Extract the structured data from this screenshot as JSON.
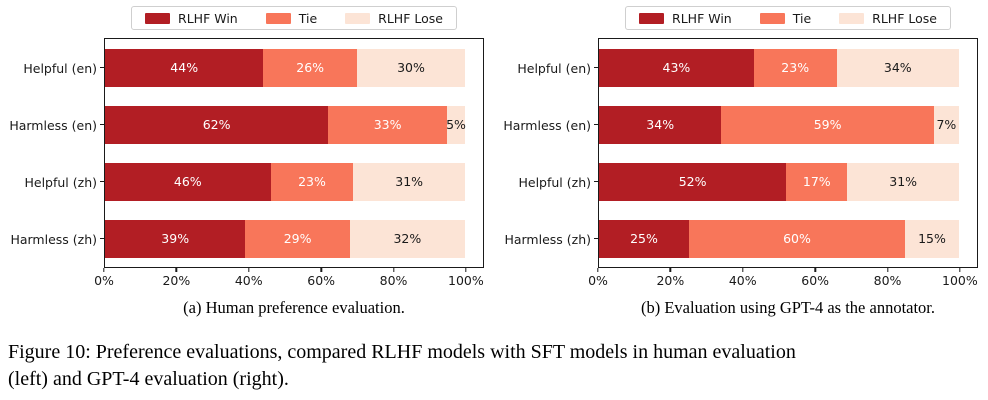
{
  "page": {
    "caption": "Figure 10: Preference evaluations, compared RLHF models with SFT models in human evaluation\n(left) and GPT-4 evaluation (right)."
  },
  "colors": {
    "win": "#b21e24",
    "tie": "#f8765a",
    "lose": "#fce4d6",
    "axis": "#1a1a1a",
    "label_on_dark": "#ffffff",
    "label_on_light": "#1a1a1a"
  },
  "chart_data": [
    {
      "type": "bar",
      "orientation": "horizontal",
      "stacked": true,
      "title": "(a) Human preference evaluation.",
      "categories": [
        "Helpful (en)",
        "Harmless (en)",
        "Helpful (zh)",
        "Harmless (zh)"
      ],
      "series": [
        {
          "name": "RLHF Win",
          "color": "#b21e24",
          "label_color": "#ffffff",
          "values": [
            44,
            62,
            46,
            39
          ]
        },
        {
          "name": "Tie",
          "color": "#f8765a",
          "label_color": "#ffffff",
          "values": [
            26,
            33,
            23,
            29
          ]
        },
        {
          "name": "RLHF Lose",
          "color": "#fce4d6",
          "label_color": "#1a1a1a",
          "values": [
            30,
            5,
            31,
            32
          ]
        }
      ],
      "value_suffix": "%",
      "xtick_labels": [
        "0%",
        "20%",
        "40%",
        "60%",
        "80%",
        "100%"
      ],
      "xlim": [
        0,
        105
      ],
      "grid": false,
      "legend_position": "top-center"
    },
    {
      "type": "bar",
      "orientation": "horizontal",
      "stacked": true,
      "title": "(b) Evaluation using GPT-4 as the annotator.",
      "categories": [
        "Helpful (en)",
        "Harmless (en)",
        "Helpful (zh)",
        "Harmless (zh)"
      ],
      "series": [
        {
          "name": "RLHF Win",
          "color": "#b21e24",
          "label_color": "#ffffff",
          "values": [
            43,
            34,
            52,
            25
          ]
        },
        {
          "name": "Tie",
          "color": "#f8765a",
          "label_color": "#ffffff",
          "values": [
            23,
            59,
            17,
            60
          ]
        },
        {
          "name": "RLHF Lose",
          "color": "#fce4d6",
          "label_color": "#1a1a1a",
          "values": [
            34,
            7,
            31,
            15
          ]
        }
      ],
      "value_suffix": "%",
      "xtick_labels": [
        "0%",
        "20%",
        "40%",
        "60%",
        "80%",
        "100%"
      ],
      "xlim": [
        0,
        105
      ],
      "grid": false,
      "legend_position": "top-center"
    }
  ]
}
